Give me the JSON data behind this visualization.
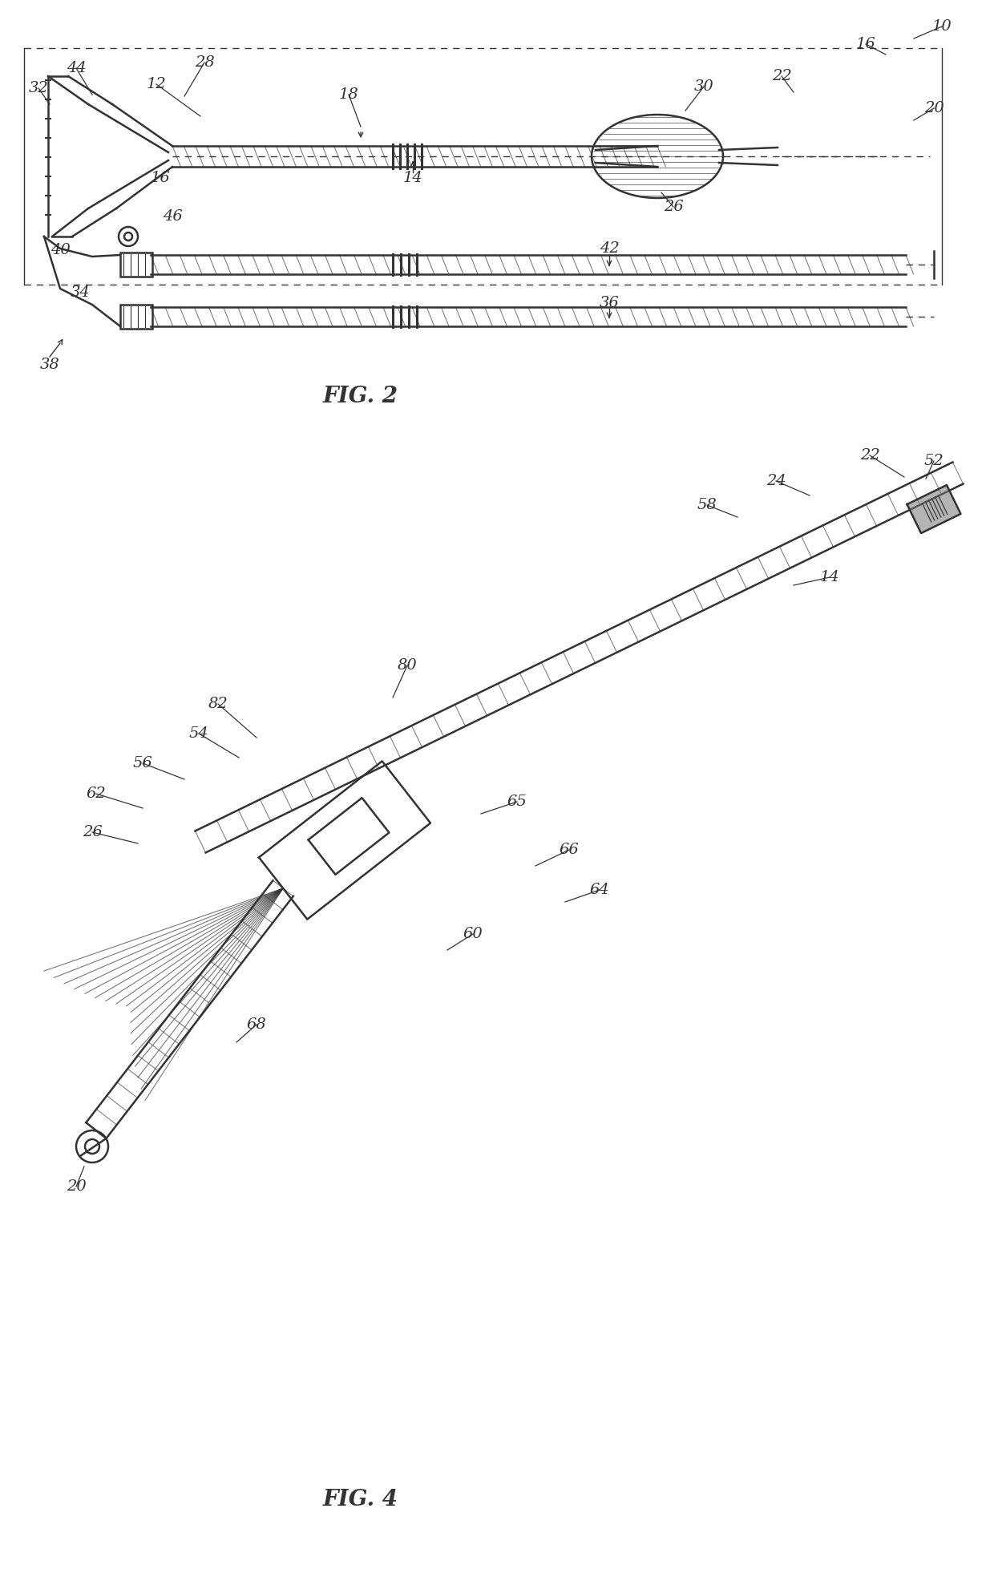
{
  "background_color": "#ffffff",
  "line_color": "#333333",
  "fig2_caption": "FIG. 2",
  "fig4_caption": "FIG. 4",
  "lw_main": 1.8,
  "lw_thin": 1.0,
  "lw_thick": 2.5,
  "label_fontsize": 14,
  "caption_fontsize": 20
}
